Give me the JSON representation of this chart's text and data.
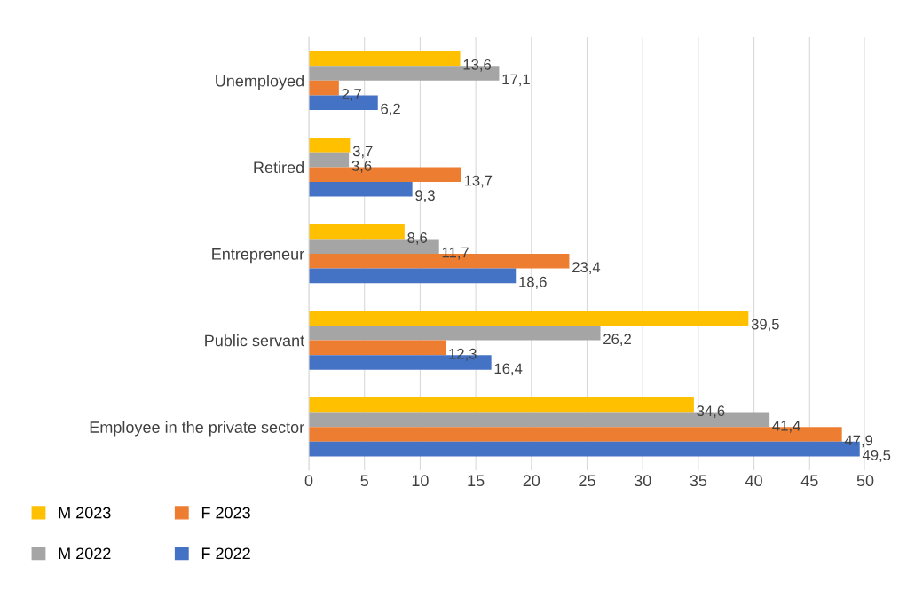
{
  "chart_data": {
    "type": "bar",
    "orientation": "horizontal",
    "categories": [
      "Unemployed",
      "Retired",
      "Entrepreneur",
      "Public servant",
      "Employee in the private sector"
    ],
    "series": [
      {
        "name": "M 2023",
        "color": "#ffc000",
        "values": [
          13.6,
          3.7,
          8.6,
          39.5,
          34.6
        ],
        "value_labels": [
          "13,6",
          "3,7",
          "8,6",
          "39,5",
          "34,6"
        ]
      },
      {
        "name": "M 2022",
        "color": "#a5a5a5",
        "values": [
          17.1,
          3.6,
          11.7,
          26.2,
          41.4
        ],
        "value_labels": [
          "17,1",
          "3,6",
          "11,7",
          "26,2",
          "41,4"
        ]
      },
      {
        "name": "F 2023",
        "color": "#ed7d31",
        "values": [
          2.7,
          13.7,
          23.4,
          12.3,
          47.9
        ],
        "value_labels": [
          "2,7",
          "13,7",
          "23,4",
          "12,3",
          "47,9"
        ]
      },
      {
        "name": "F 2022",
        "color": "#4472c4",
        "values": [
          6.2,
          9.3,
          18.6,
          16.4,
          49.5
        ],
        "value_labels": [
          "6,2",
          "9,3",
          "18,6",
          "16,4",
          "49,5"
        ]
      }
    ],
    "xlim": [
      0,
      50
    ],
    "xticks": [
      0,
      5,
      10,
      15,
      20,
      25,
      30,
      35,
      40,
      45,
      50
    ],
    "grid": "x",
    "legend": "bottom left"
  }
}
